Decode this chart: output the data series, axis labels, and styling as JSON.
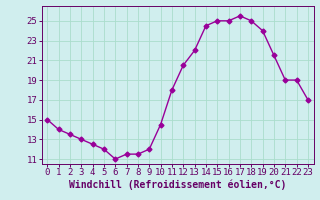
{
  "x": [
    0,
    1,
    2,
    3,
    4,
    5,
    6,
    7,
    8,
    9,
    10,
    11,
    12,
    13,
    14,
    15,
    16,
    17,
    18,
    19,
    20,
    21,
    22,
    23
  ],
  "y": [
    15,
    14,
    13.5,
    13,
    12.5,
    12,
    11,
    11.5,
    11.5,
    12,
    14.5,
    18,
    20.5,
    22,
    24.5,
    25,
    25,
    25.5,
    25,
    24,
    21.5,
    19,
    19,
    17
  ],
  "line_color": "#990099",
  "marker": "D",
  "marker_size": 2.5,
  "line_width": 1.0,
  "background_color": "#d0eeee",
  "grid_color": "#aaddcc",
  "xlabel": "Windchill (Refroidissement éolien,°C)",
  "xlabel_color": "#660066",
  "xlabel_fontsize": 7,
  "tick_color": "#660066",
  "tick_fontsize": 6.5,
  "ylim": [
    10.5,
    26.5
  ],
  "yticks": [
    11,
    13,
    15,
    17,
    19,
    21,
    23,
    25
  ],
  "xticks": [
    0,
    1,
    2,
    3,
    4,
    5,
    6,
    7,
    8,
    9,
    10,
    11,
    12,
    13,
    14,
    15,
    16,
    17,
    18,
    19,
    20,
    21,
    22,
    23
  ],
  "xlim": [
    -0.5,
    23.5
  ]
}
